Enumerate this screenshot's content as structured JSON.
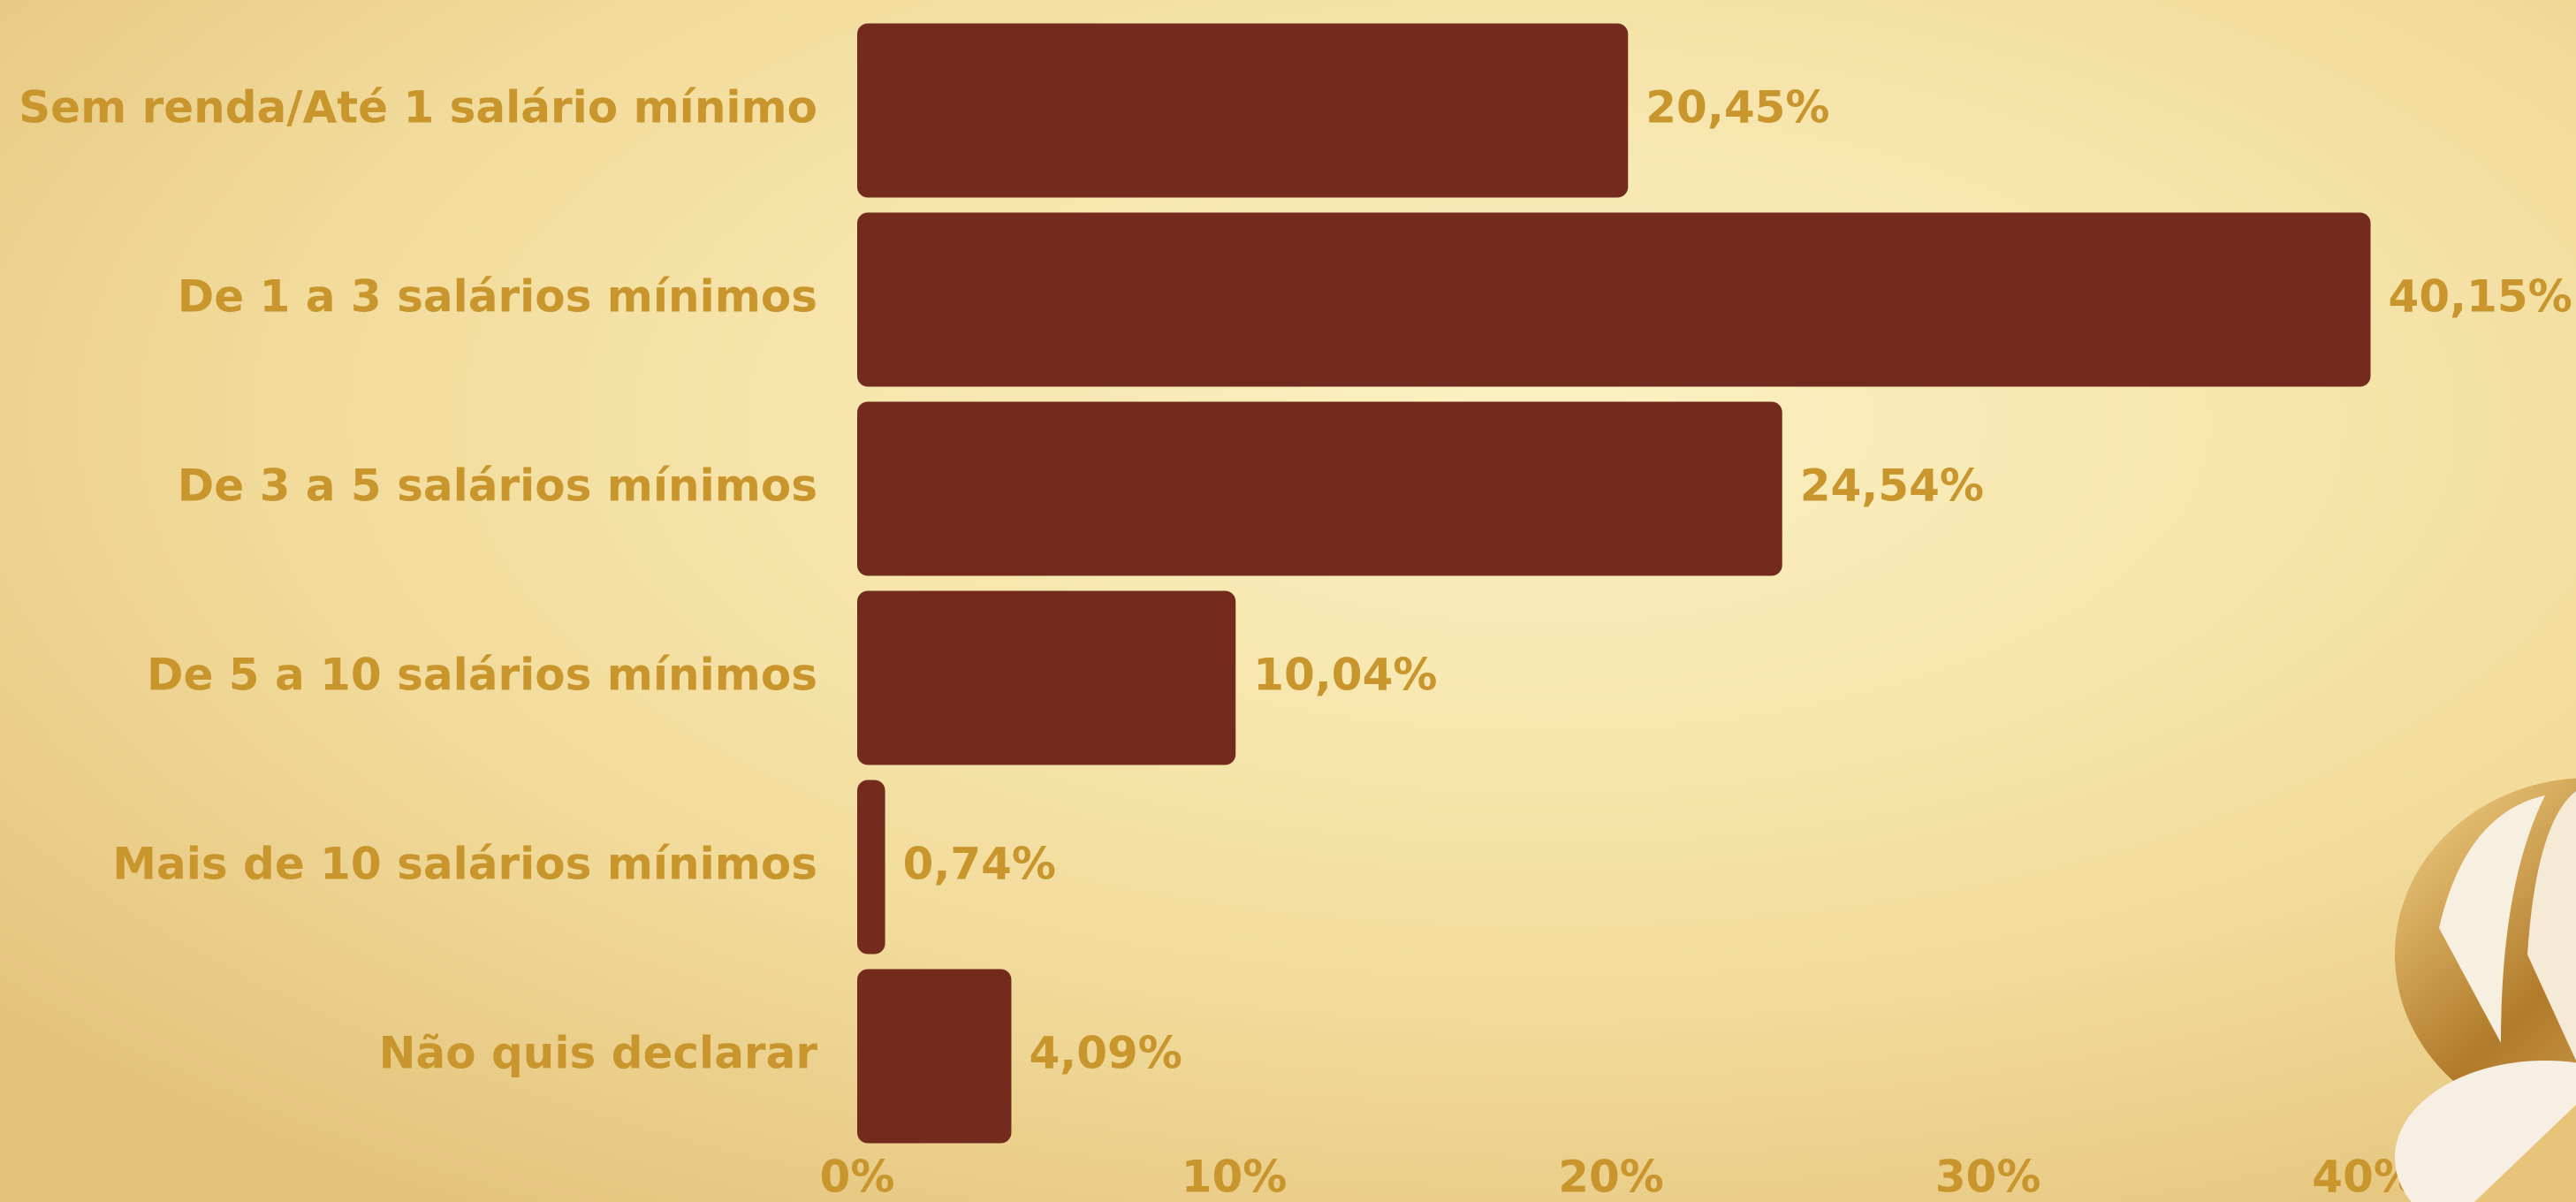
{
  "chart_data": {
    "type": "barh",
    "categories": [
      "Sem renda/Até 1 salário mínimo",
      "De 1 a 3 salários mínimos",
      "De 3 a 5 salários mínimos",
      "De 5 a 10 salários mínimos",
      "Mais de 10 salários mínimos",
      "Não quis declarar"
    ],
    "values": [
      20.45,
      40.15,
      24.54,
      10.04,
      0.74,
      4.09
    ],
    "value_labels": [
      "20,45%",
      "40,15%",
      "24,54%",
      "10,04%",
      "0,74%",
      "4,09%"
    ],
    "color": "#722b1d",
    "xlim": [
      0,
      45.6
    ],
    "xticks": [
      {
        "value": 0,
        "label": "0%"
      },
      {
        "value": 10,
        "label": "10%"
      },
      {
        "value": 20,
        "label": "20%"
      },
      {
        "value": 30,
        "label": "30%"
      },
      {
        "value": 40,
        "label": "40%"
      }
    ],
    "grid": false
  }
}
